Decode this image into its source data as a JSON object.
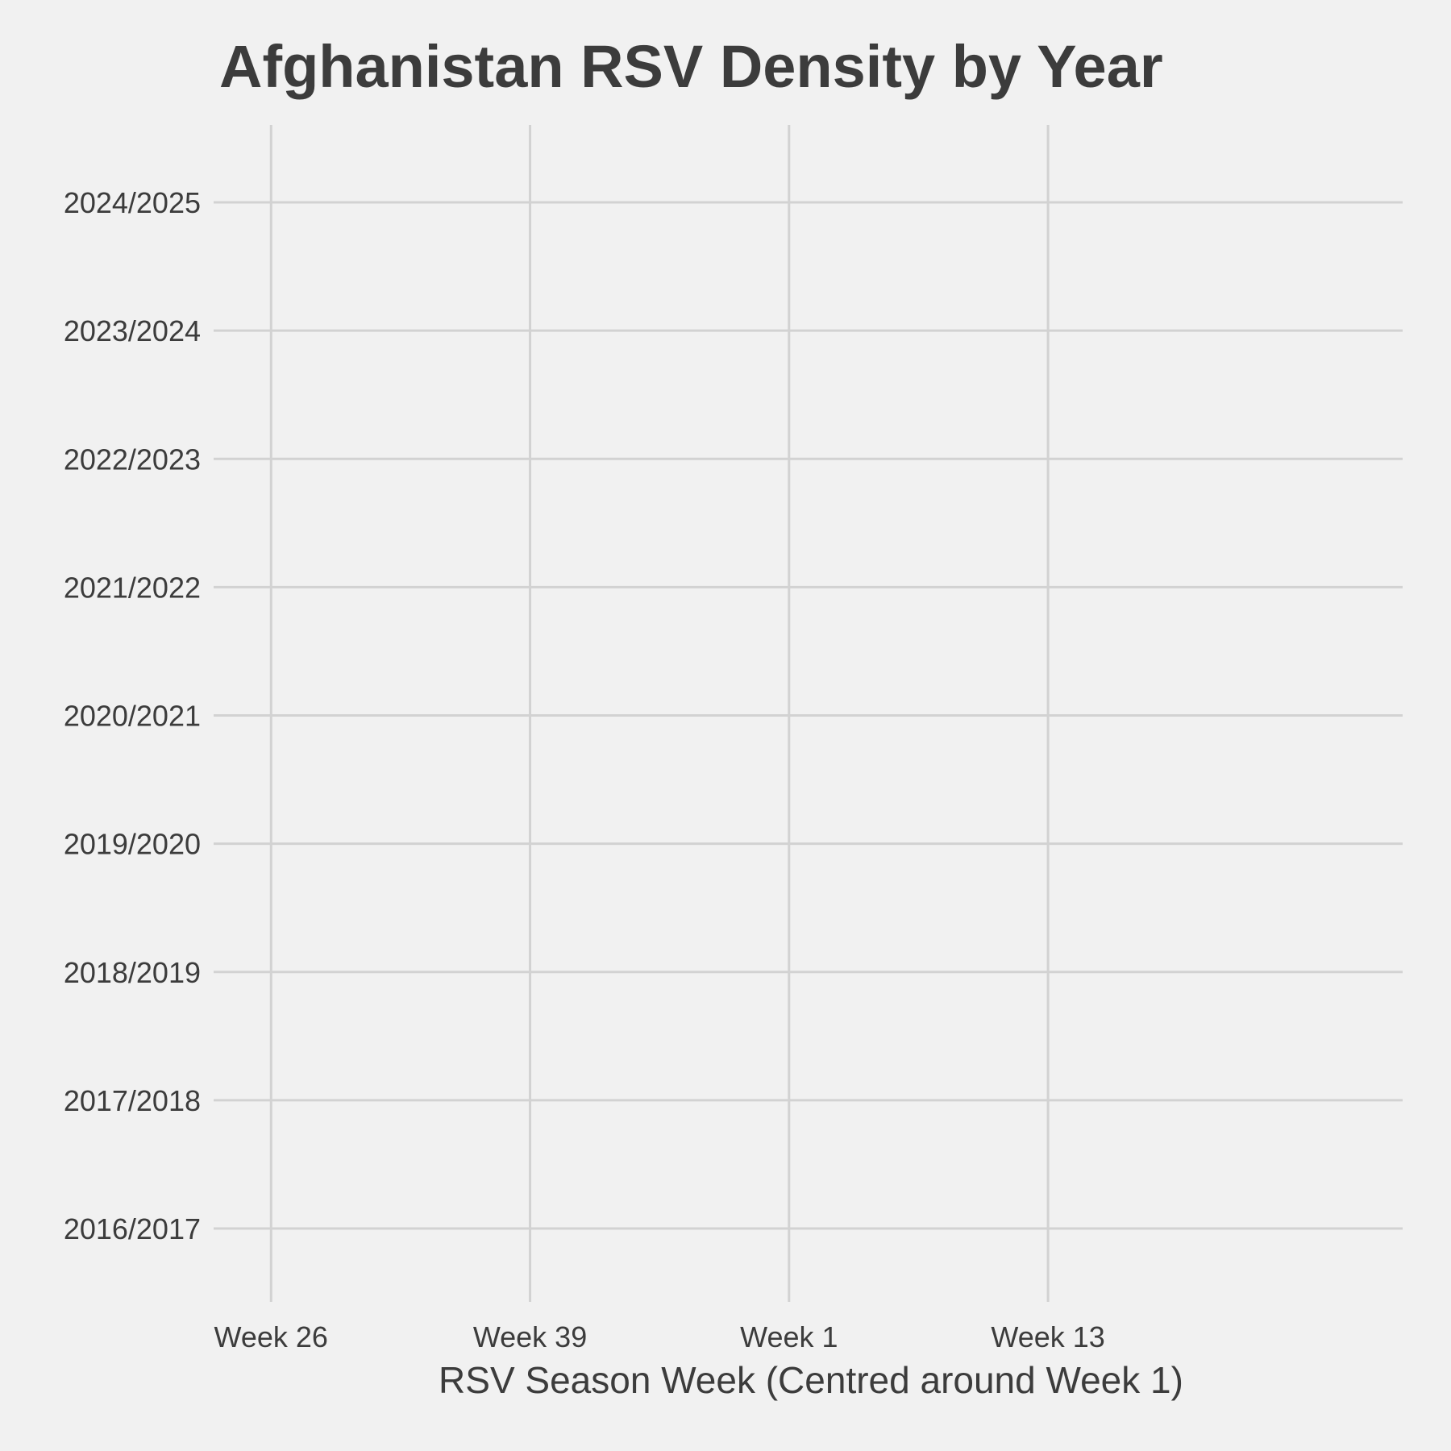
{
  "chart_data": {
    "type": "density-ridgeline",
    "title": "Afghanistan RSV Density by Year",
    "subtitle": "",
    "xlabel": "RSV Season Week (Centred around Week 1)",
    "ylabel": "",
    "x_ticks": [
      {
        "label": "Week 26",
        "week_offset": -26
      },
      {
        "label": "Week 39",
        "week_offset": -13
      },
      {
        "label": "Week 1",
        "week_offset": 0
      },
      {
        "label": "Week 13",
        "week_offset": 13
      }
    ],
    "xlim": [
      -28.6,
      30.8
    ],
    "categories": [
      "2016/2017",
      "2017/2018",
      "2018/2019",
      "2019/2020",
      "2020/2021",
      "2021/2022",
      "2022/2023",
      "2023/2024",
      "2024/2025"
    ],
    "series": [],
    "grid": true,
    "legend": "none",
    "colors": {
      "background": "#f1f1f1",
      "grid": "#d2d2d2",
      "text": "#3c3c3c"
    }
  }
}
